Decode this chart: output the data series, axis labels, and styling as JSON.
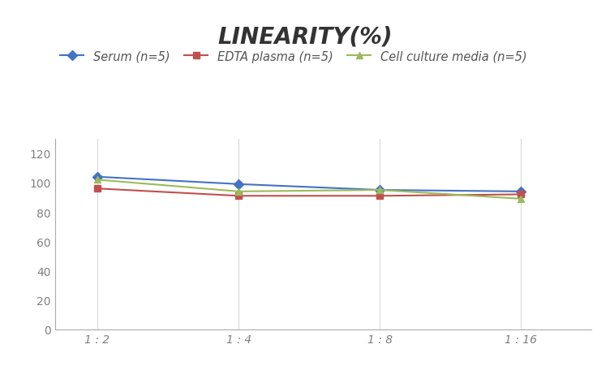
{
  "title": "LINEARITY(%)",
  "x_labels": [
    "1 : 2",
    "1 : 4",
    "1 : 8",
    "1 : 16"
  ],
  "x_positions": [
    0,
    1,
    2,
    3
  ],
  "series": [
    {
      "label": "Serum (n=5)",
      "values": [
        104,
        99,
        95,
        94
      ],
      "color": "#4472C4",
      "marker": "D",
      "linewidth": 1.5
    },
    {
      "label": "EDTA plasma (n=5)",
      "values": [
        96,
        91,
        91,
        92
      ],
      "color": "#C0504D",
      "marker": "s",
      "linewidth": 1.5
    },
    {
      "label": "Cell culture media (n=5)",
      "values": [
        102,
        94,
        95,
        89
      ],
      "color": "#9BBB59",
      "marker": "^",
      "linewidth": 1.5
    }
  ],
  "ylim": [
    0,
    130
  ],
  "yticks": [
    0,
    20,
    40,
    60,
    80,
    100,
    120
  ],
  "grid_color": "#D9D9D9",
  "background_color": "#FFFFFF",
  "title_fontsize": 20,
  "legend_fontsize": 10.5,
  "tick_fontsize": 10,
  "tick_color": "#808080"
}
